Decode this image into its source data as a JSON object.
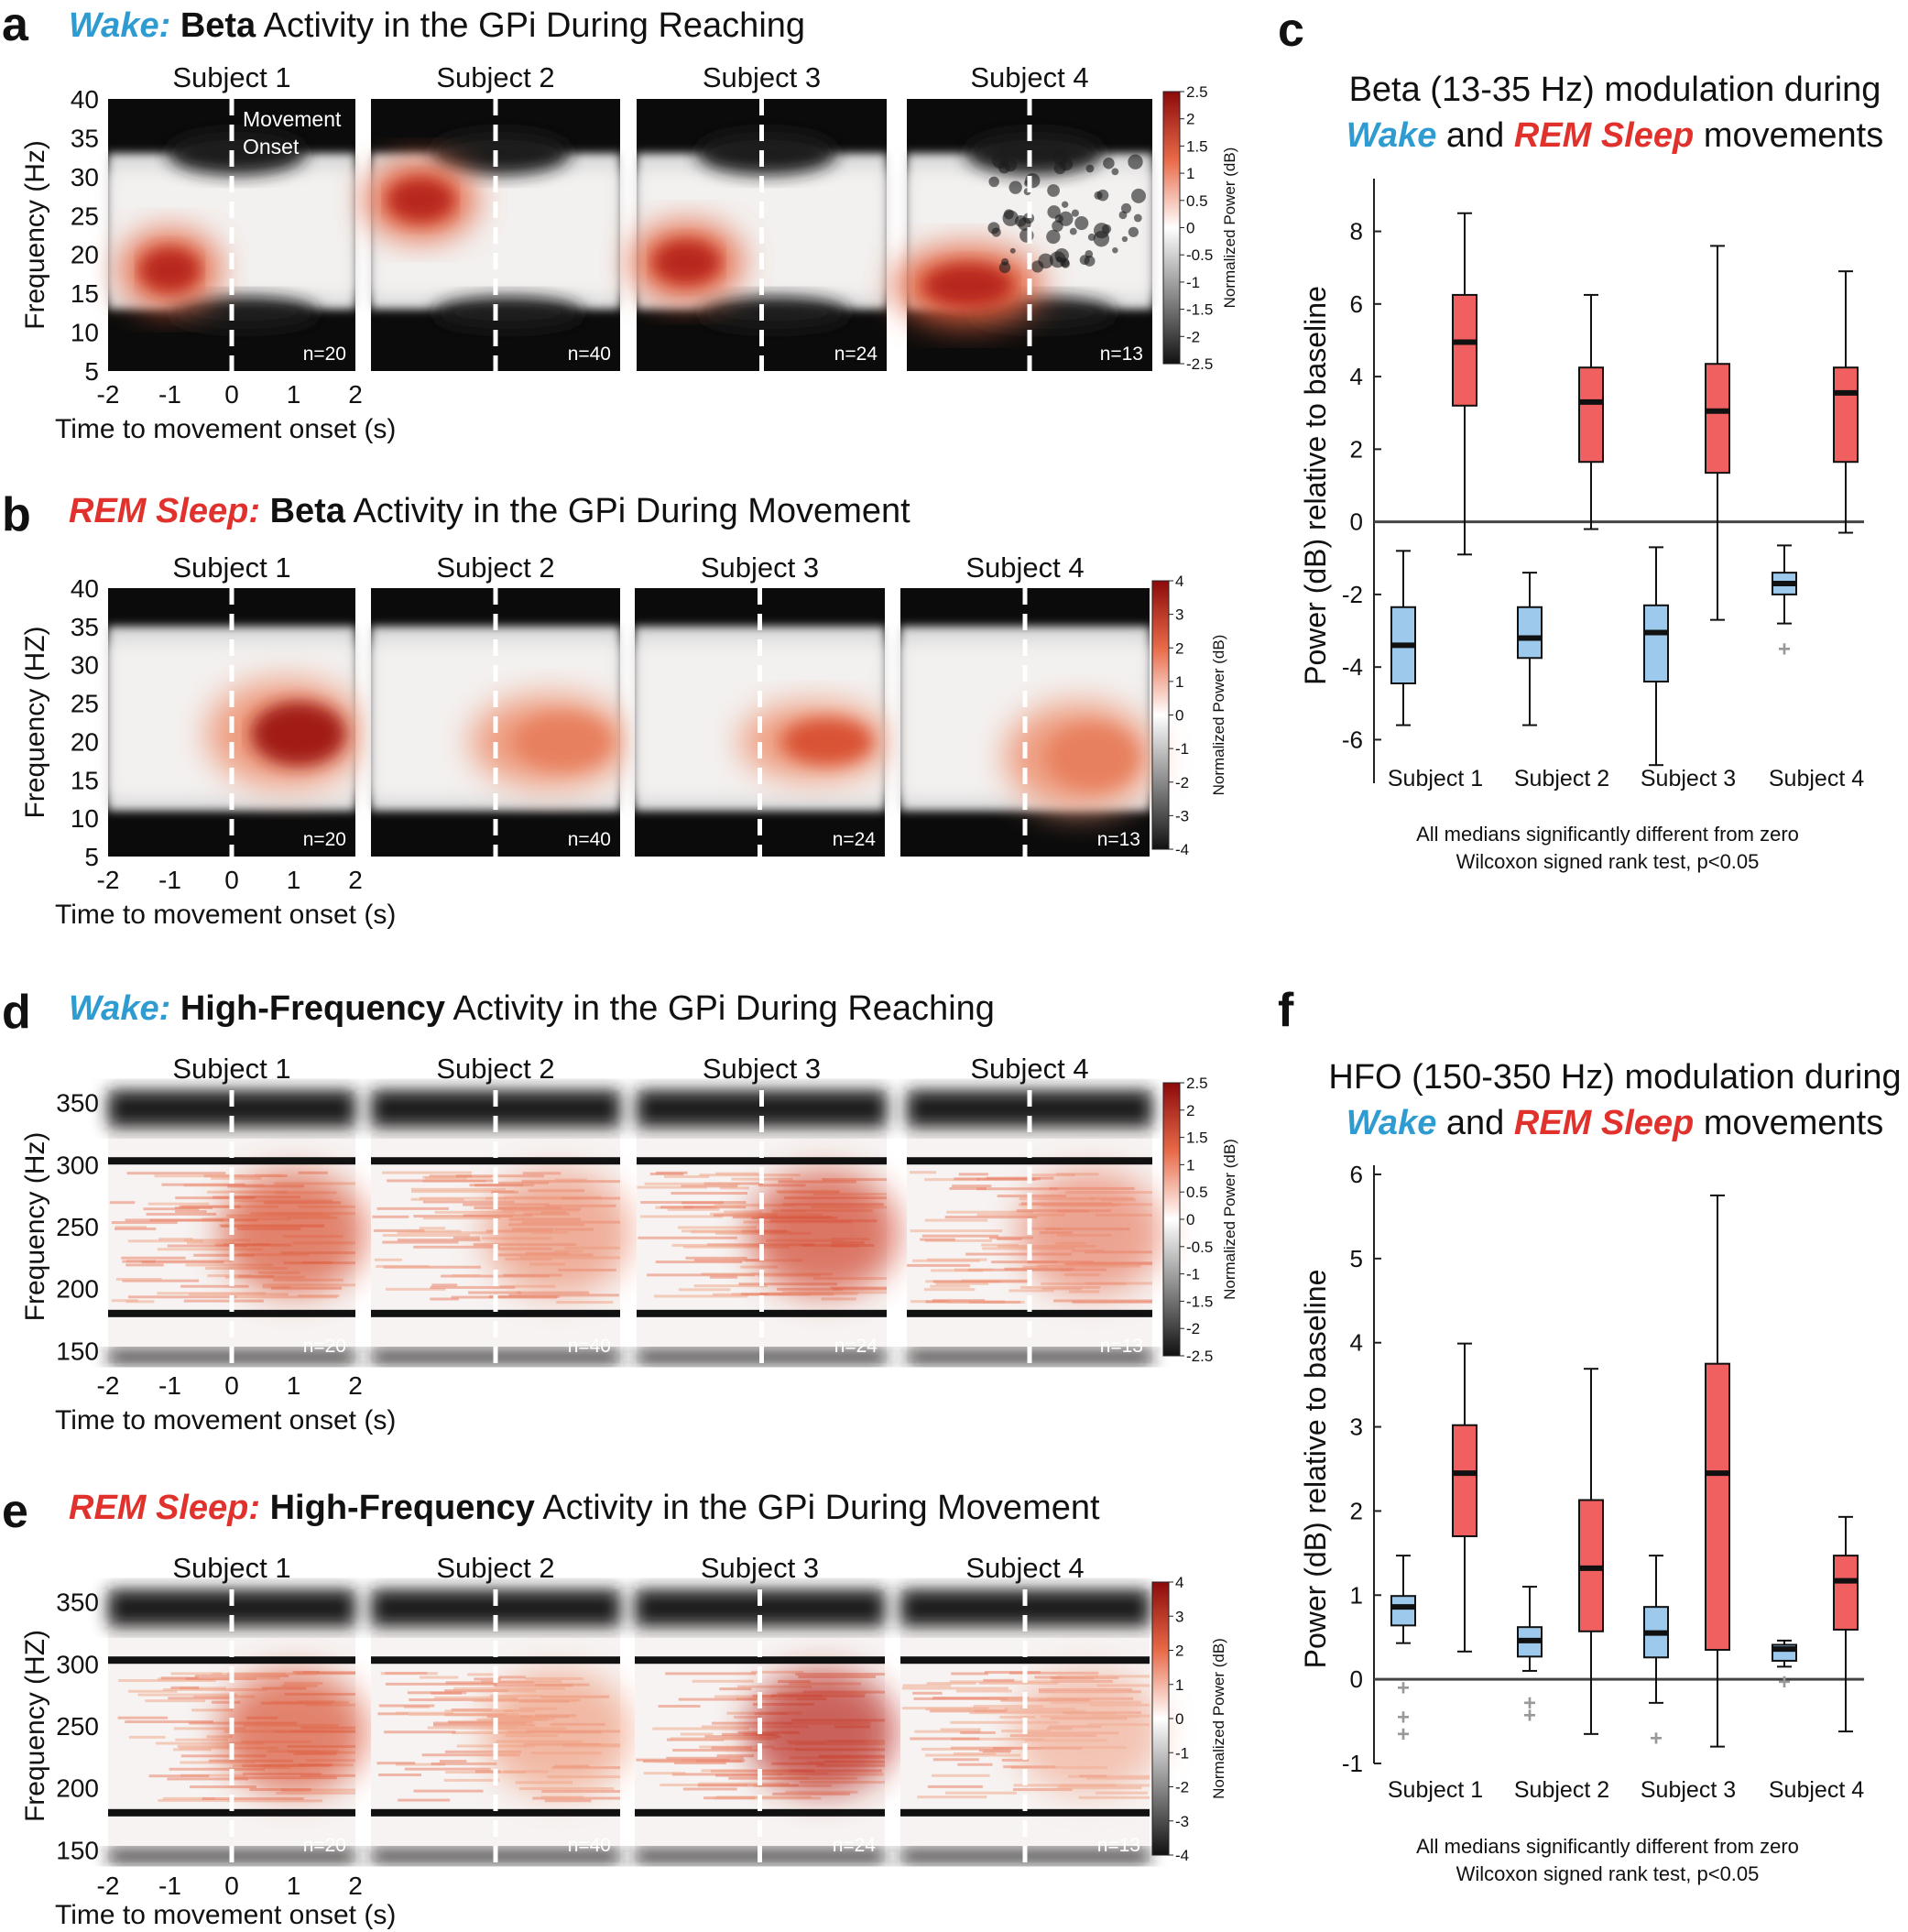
{
  "rows": [
    {
      "id": "a",
      "letter": "a",
      "title": {
        "lead": "Wake:",
        "bold": "Beta",
        "rest": " Activity in the GPi During Reaching"
      },
      "type": "beta",
      "state": "wake",
      "ylabel": "Frequency (Hz)",
      "yticks": [
        "40",
        "35",
        "30",
        "25",
        "20",
        "15",
        "10",
        "5"
      ],
      "xticks": [
        "-2",
        "-1",
        "0",
        "1",
        "2"
      ],
      "xlabel": "Time to movement onset (s)",
      "subjects": [
        "Subject 1",
        "Subject 2",
        "Subject 3",
        "Subject 4"
      ],
      "n": [
        "n=20",
        "n=40",
        "n=24",
        "n=13"
      ],
      "annotation": [
        "Movement",
        "Onset"
      ],
      "colorbar": {
        "label": "Normalized Power (dB)",
        "ticks": [
          "2.5",
          "2",
          "1.5",
          "1",
          "0.5",
          "0",
          "-0.5",
          "-1",
          "-1.5",
          "-2",
          "-2.5"
        ]
      }
    },
    {
      "id": "b",
      "letter": "b",
      "title": {
        "lead": "REM Sleep:",
        "bold": "Beta",
        "rest": " Activity in the GPi During Movement"
      },
      "type": "beta",
      "state": "rem",
      "ylabel": "Frequency (HZ)",
      "yticks": [
        "40",
        "35",
        "30",
        "25",
        "20",
        "15",
        "10",
        "5"
      ],
      "xticks": [
        "-2",
        "-1",
        "0",
        "1",
        "2"
      ],
      "xlabel": "Time to movement onset (s)",
      "subjects": [
        "Subject 1",
        "Subject 2",
        "Subject 3",
        "Subject 4"
      ],
      "n": [
        "n=20",
        "n=40",
        "n=24",
        "n=13"
      ],
      "colorbar": {
        "label": "Normalized Power (dB)",
        "ticks": [
          "4",
          "3",
          "2",
          "1",
          "0",
          "-1",
          "-2",
          "-3",
          "-4"
        ]
      }
    },
    {
      "id": "d",
      "letter": "d",
      "title": {
        "lead": "Wake:",
        "bold": "High-Frequency",
        "rest": " Activity in the GPi During Reaching"
      },
      "type": "hfo",
      "state": "wake",
      "ylabel": "Frequency (Hz)",
      "yticks": [
        "350",
        "300",
        "250",
        "200",
        "150"
      ],
      "xticks": [
        "-2",
        "-1",
        "0",
        "1",
        "2"
      ],
      "xlabel": "Time to movement onset (s)",
      "subjects": [
        "Subject 1",
        "Subject 2",
        "Subject 3",
        "Subject 4"
      ],
      "n": [
        "n=20",
        "n=40",
        "n=24",
        "n=13"
      ],
      "colorbar": {
        "label": "Normalized Power (dB)",
        "ticks": [
          "2.5",
          "2",
          "1.5",
          "1",
          "0.5",
          "0",
          "-0.5",
          "-1",
          "-1.5",
          "-2",
          "-2.5"
        ]
      }
    },
    {
      "id": "e",
      "letter": "e",
      "title": {
        "lead": "REM Sleep:",
        "bold": "High-Frequency",
        "rest": " Activity in the GPi During Movement"
      },
      "type": "hfo",
      "state": "rem",
      "ylabel": "Frequency (HZ)",
      "yticks": [
        "350",
        "300",
        "250",
        "200",
        "150"
      ],
      "xticks": [
        "-2",
        "-1",
        "0",
        "1",
        "2"
      ],
      "xlabel": "Time to movement onset (s)",
      "subjects": [
        "Subject 1",
        "Subject 2",
        "Subject 3",
        "Subject 4"
      ],
      "n": [
        "n=20",
        "n=40",
        "n=24",
        "n=13"
      ],
      "colorbar": {
        "label": "Normalized Power (dB)",
        "ticks": [
          "4",
          "3",
          "2",
          "1",
          "0",
          "-1",
          "-2",
          "-3",
          "-4"
        ]
      }
    }
  ],
  "colors": {
    "wake": "#2e9bd1",
    "rem": "#e0312c",
    "wake_box": "#9cc9ec",
    "rem_box": "#f06060",
    "zero_line": "#444444",
    "outlier": "#999999"
  },
  "chart_data": [
    {
      "type": "heatmap",
      "panel": "a",
      "title": "Wake: Beta Activity in the GPi During Reaching",
      "xlabel": "Time to movement onset (s)",
      "ylabel": "Frequency (Hz)",
      "xlim": [
        -2,
        2
      ],
      "ylim": [
        5,
        40
      ],
      "clim": [
        -2.5,
        2.5
      ],
      "series": [
        "Subject 1",
        "Subject 2",
        "Subject 3",
        "Subject 4"
      ],
      "n": [
        20,
        40,
        24,
        13
      ],
      "onset_time": 0
    },
    {
      "type": "heatmap",
      "panel": "b",
      "title": "REM Sleep: Beta Activity in the GPi During Movement",
      "xlabel": "Time to movement onset (s)",
      "ylabel": "Frequency (HZ)",
      "xlim": [
        -2,
        2
      ],
      "ylim": [
        5,
        40
      ],
      "clim": [
        -4,
        4
      ],
      "series": [
        "Subject 1",
        "Subject 2",
        "Subject 3",
        "Subject 4"
      ],
      "n": [
        20,
        40,
        24,
        13
      ],
      "onset_time": 0
    },
    {
      "type": "heatmap",
      "panel": "d",
      "title": "Wake: High-Frequency Activity in the GPi During Reaching",
      "xlabel": "Time to movement onset (s)",
      "ylabel": "Frequency (Hz)",
      "xlim": [
        -2,
        2
      ],
      "ylim": [
        140,
        360
      ],
      "clim": [
        -2.5,
        2.5
      ],
      "series": [
        "Subject 1",
        "Subject 2",
        "Subject 3",
        "Subject 4"
      ],
      "n": [
        20,
        40,
        24,
        13
      ],
      "onset_time": 0
    },
    {
      "type": "heatmap",
      "panel": "e",
      "title": "REM Sleep: High-Frequency Activity in the GPi During Movement",
      "xlabel": "Time to movement onset (s)",
      "ylabel": "Frequency (HZ)",
      "xlim": [
        -2,
        2
      ],
      "ylim": [
        140,
        360
      ],
      "clim": [
        -4,
        4
      ],
      "series": [
        "Subject 1",
        "Subject 2",
        "Subject 3",
        "Subject 4"
      ],
      "n": [
        20,
        40,
        24,
        13
      ],
      "onset_time": 0
    },
    {
      "type": "box",
      "panel": "c",
      "letter": "c",
      "title": [
        "Beta (13-35 Hz) modulation during"
      ],
      "title2": {
        "wake": "Wake",
        "and": " and ",
        "rem": "REM Sleep",
        "end": " movements"
      },
      "ylabel": "Power (dB) relative to baseline",
      "ylim": [
        -7.2,
        9.2
      ],
      "yticks": [
        8,
        6,
        4,
        2,
        0,
        -2,
        -4,
        -6
      ],
      "categories": [
        "Subject 1",
        "Subject 2",
        "Subject 3",
        "Subject 4"
      ],
      "footnote": [
        "All medians significantly different from zero",
        "Wilcoxon signed rank test, p<0.05"
      ],
      "series": [
        {
          "name": "Wake",
          "boxes": [
            {
              "min": -5.6,
              "q1": -4.45,
              "median": -3.4,
              "q3": -2.35,
              "max": -0.8,
              "outliers": []
            },
            {
              "min": -5.6,
              "q1": -3.75,
              "median": -3.2,
              "q3": -2.35,
              "max": -1.4,
              "outliers": []
            },
            {
              "min": -6.7,
              "q1": -4.4,
              "median": -3.05,
              "q3": -2.3,
              "max": -0.7,
              "outliers": []
            },
            {
              "min": -2.8,
              "q1": -2.0,
              "median": -1.7,
              "q3": -1.4,
              "max": -0.65,
              "outliers": [
                -3.5
              ]
            }
          ]
        },
        {
          "name": "REM Sleep",
          "boxes": [
            {
              "min": -0.9,
              "q1": 3.2,
              "median": 4.95,
              "q3": 6.25,
              "max": 8.5,
              "outliers": []
            },
            {
              "min": -0.2,
              "q1": 1.65,
              "median": 3.3,
              "q3": 4.25,
              "max": 6.25,
              "outliers": []
            },
            {
              "min": -2.7,
              "q1": 1.35,
              "median": 3.05,
              "q3": 4.35,
              "max": 7.6,
              "outliers": []
            },
            {
              "min": -0.3,
              "q1": 1.65,
              "median": 3.55,
              "q3": 4.25,
              "max": 6.9,
              "outliers": []
            }
          ]
        }
      ]
    },
    {
      "type": "box",
      "panel": "f",
      "letter": "f",
      "title": [
        "HFO (150-350 Hz) modulation during"
      ],
      "title2": {
        "wake": "Wake",
        "and": " and ",
        "rem": "REM Sleep",
        "end": " movements"
      },
      "ylabel": "Power (dB) relative to baseline",
      "ylim": [
        -1,
        6
      ],
      "yticks": [
        6,
        5,
        4,
        3,
        2,
        1,
        0,
        -1
      ],
      "categories": [
        "Subject 1",
        "Subject 2",
        "Subject 3",
        "Subject 4"
      ],
      "footnote": [
        "All medians significantly different from zero",
        "Wilcoxon signed rank test, p<0.05"
      ],
      "series": [
        {
          "name": "Wake",
          "boxes": [
            {
              "min": 0.43,
              "q1": 0.64,
              "median": 0.86,
              "q3": 0.99,
              "max": 1.47,
              "outliers": [
                -0.1,
                -0.45,
                -0.65
              ]
            },
            {
              "min": 0.1,
              "q1": 0.27,
              "median": 0.46,
              "q3": 0.62,
              "max": 1.1,
              "outliers": [
                -0.28,
                -0.43
              ]
            },
            {
              "min": -0.28,
              "q1": 0.26,
              "median": 0.55,
              "q3": 0.86,
              "max": 1.47,
              "outliers": [
                -0.7
              ]
            },
            {
              "min": 0.15,
              "q1": 0.22,
              "median": 0.36,
              "q3": 0.41,
              "max": 0.46,
              "outliers": [
                -0.03
              ]
            }
          ]
        },
        {
          "name": "REM Sleep",
          "boxes": [
            {
              "min": 0.33,
              "q1": 1.7,
              "median": 2.45,
              "q3": 3.02,
              "max": 3.99,
              "outliers": []
            },
            {
              "min": -0.65,
              "q1": 0.57,
              "median": 1.32,
              "q3": 2.13,
              "max": 3.69,
              "outliers": []
            },
            {
              "min": -0.8,
              "q1": 0.35,
              "median": 2.45,
              "q3": 3.75,
              "max": 5.75,
              "outliers": []
            },
            {
              "min": -0.62,
              "q1": 0.59,
              "median": 1.17,
              "q3": 1.47,
              "max": 1.93,
              "outliers": []
            }
          ]
        }
      ]
    }
  ]
}
